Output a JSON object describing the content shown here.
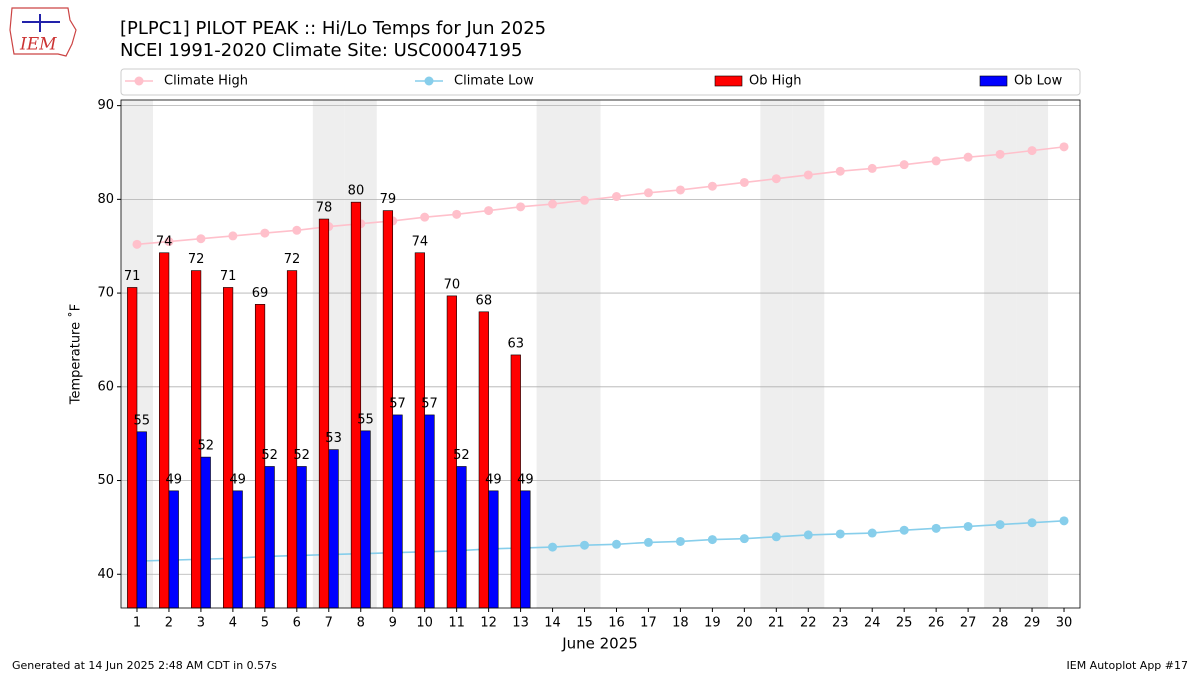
{
  "chart_data": {
    "type": "bar",
    "title": "[PLPC1] PILOT PEAK :: Hi/Lo Temps for Jun 2025",
    "subtitle": "NCEI 1991-2020 Climate Site: USC00047195",
    "logo_text": "IEM",
    "xlabel": "June 2025",
    "ylabel": "Temperature ˚F",
    "footer_left": "Generated at 14 Jun 2025 2:48 AM CDT in 0.57s",
    "footer_right": "IEM Autoplot App #17",
    "x": [
      1,
      2,
      3,
      4,
      5,
      6,
      7,
      8,
      9,
      10,
      11,
      12,
      13,
      14,
      15,
      16,
      17,
      18,
      19,
      20,
      21,
      22,
      23,
      24,
      25,
      26,
      27,
      28,
      29,
      30
    ],
    "xlim": [
      0.5,
      30.5
    ],
    "xticks": [
      1,
      2,
      3,
      4,
      5,
      6,
      7,
      8,
      9,
      10,
      11,
      12,
      13,
      14,
      15,
      16,
      17,
      18,
      19,
      20,
      21,
      22,
      23,
      24,
      25,
      26,
      27,
      28,
      29,
      30
    ],
    "ylim": [
      36.4,
      90.6
    ],
    "yticks": [
      40,
      50,
      60,
      70,
      80,
      90
    ],
    "grid": true,
    "legend": "top",
    "highlight_days": [
      1,
      7,
      8,
      14,
      15,
      21,
      22,
      28,
      29
    ],
    "highlight_color": "#eeeeee",
    "series": [
      {
        "name": "Climate High",
        "type": "line",
        "color": "pink",
        "values": [
          75.2,
          75.5,
          75.8,
          76.1,
          76.4,
          76.7,
          77.1,
          77.4,
          77.7,
          78.1,
          78.4,
          78.8,
          79.2,
          79.5,
          79.9,
          80.3,
          80.7,
          81.0,
          81.4,
          81.8,
          82.2,
          82.6,
          83.0,
          83.3,
          83.7,
          84.1,
          84.5,
          84.8,
          85.2,
          85.6
        ]
      },
      {
        "name": "Climate Low",
        "type": "line",
        "color": "skyblue",
        "values": [
          41.4,
          41.5,
          41.6,
          41.7,
          41.9,
          42.0,
          42.1,
          42.2,
          42.3,
          42.4,
          42.5,
          42.7,
          42.8,
          42.9,
          43.1,
          43.2,
          43.4,
          43.5,
          43.7,
          43.8,
          44.0,
          44.2,
          44.3,
          44.4,
          44.7,
          44.9,
          45.1,
          45.3,
          45.5,
          45.7
        ]
      },
      {
        "name": "Ob High",
        "type": "bar",
        "color": "red",
        "values": [
          70.6,
          74.3,
          72.4,
          70.6,
          68.8,
          72.4,
          77.9,
          79.7,
          78.8,
          74.3,
          69.7,
          68.0,
          63.4,
          null,
          null,
          null,
          null,
          null,
          null,
          null,
          null,
          null,
          null,
          null,
          null,
          null,
          null,
          null,
          null,
          null
        ],
        "value_labels": [
          "71",
          "74",
          "72",
          "71",
          "69",
          "72",
          "78",
          "80",
          "79",
          "74",
          "70",
          "68",
          "63",
          null,
          null,
          null,
          null,
          null,
          null,
          null,
          null,
          null,
          null,
          null,
          null,
          null,
          null,
          null,
          null,
          null
        ]
      },
      {
        "name": "Ob Low",
        "type": "bar",
        "color": "blue",
        "values": [
          55.2,
          48.9,
          52.5,
          48.9,
          51.5,
          51.5,
          53.3,
          55.3,
          57.0,
          57.0,
          51.5,
          48.9,
          48.9,
          null,
          null,
          null,
          null,
          null,
          null,
          null,
          null,
          null,
          null,
          null,
          null,
          null,
          null,
          null,
          null,
          null
        ],
        "value_labels": [
          "55",
          "49",
          "52",
          "49",
          "52",
          "52",
          "53",
          "55",
          "57",
          "57",
          "52",
          "49",
          "49",
          null,
          null,
          null,
          null,
          null,
          null,
          null,
          null,
          null,
          null,
          null,
          null,
          null,
          null,
          null,
          null,
          null
        ]
      }
    ]
  }
}
